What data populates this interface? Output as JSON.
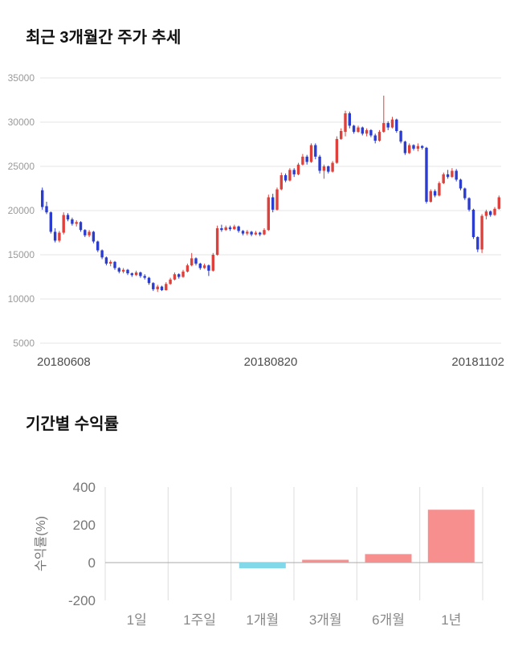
{
  "price_section": {
    "title": "최근 3개월간 주가 추세"
  },
  "returns_section": {
    "title": "기간별 수익률"
  },
  "chart_data": [
    {
      "type": "candlestick",
      "title": "최근 3개월간 주가 추세",
      "ylim": [
        5000,
        35000
      ],
      "yticks": [
        5000,
        10000,
        15000,
        20000,
        25000,
        30000,
        35000
      ],
      "x_labels": [
        "20180608",
        "20180820",
        "20181102"
      ],
      "up_color": "#df403b",
      "down_color": "#2b3cd1",
      "grid_color": "#e4e4e4",
      "grid": "horizontal-only",
      "candles": [
        [
          22300,
          22600,
          20100,
          20400
        ],
        [
          20500,
          21000,
          19600,
          19800
        ],
        [
          19800,
          19900,
          17400,
          17600
        ],
        [
          17600,
          18000,
          16400,
          16600
        ],
        [
          16600,
          17700,
          16400,
          17500
        ],
        [
          17500,
          19800,
          17300,
          19500
        ],
        [
          19500,
          19700,
          18800,
          19000
        ],
        [
          19000,
          19200,
          18300,
          18500
        ],
        [
          18500,
          18900,
          18200,
          18700
        ],
        [
          18700,
          18800,
          17600,
          17800
        ],
        [
          17800,
          17900,
          17000,
          17200
        ],
        [
          17200,
          17800,
          17000,
          17600
        ],
        [
          17600,
          17700,
          16300,
          16500
        ],
        [
          16500,
          16600,
          15300,
          15500
        ],
        [
          15500,
          15600,
          14500,
          14700
        ],
        [
          14700,
          14800,
          13800,
          14000
        ],
        [
          14000,
          14400,
          13700,
          14200
        ],
        [
          14200,
          14300,
          13300,
          13500
        ],
        [
          13500,
          13600,
          12900,
          13100
        ],
        [
          13100,
          13500,
          12900,
          13300
        ],
        [
          13300,
          13400,
          12700,
          12900
        ],
        [
          12900,
          13000,
          12500,
          12700
        ],
        [
          12700,
          13200,
          12600,
          13000
        ],
        [
          13000,
          13100,
          12400,
          12600
        ],
        [
          12600,
          12800,
          12200,
          12400
        ],
        [
          12400,
          12500,
          11600,
          11800
        ],
        [
          11800,
          11900,
          10900,
          11100
        ],
        [
          11100,
          11600,
          10800,
          11400
        ],
        [
          11400,
          11500,
          10900,
          11000
        ],
        [
          11000,
          11900,
          10950,
          11700
        ],
        [
          11700,
          12400,
          11600,
          12200
        ],
        [
          12200,
          13000,
          12100,
          12800
        ],
        [
          12800,
          12900,
          12300,
          12500
        ],
        [
          12500,
          13300,
          12400,
          13100
        ],
        [
          13100,
          14000,
          13000,
          13800
        ],
        [
          13800,
          15200,
          13700,
          14600
        ],
        [
          14600,
          14700,
          13800,
          14000
        ],
        [
          14000,
          14100,
          13300,
          13500
        ],
        [
          13500,
          14000,
          13400,
          13800
        ],
        [
          13800,
          13900,
          12600,
          13200
        ],
        [
          13200,
          15200,
          13100,
          15000
        ],
        [
          15000,
          18300,
          14900,
          18000
        ],
        [
          18000,
          18400,
          17600,
          17800
        ],
        [
          17800,
          18300,
          17700,
          18100
        ],
        [
          18100,
          18300,
          17700,
          17900
        ],
        [
          17900,
          18400,
          17800,
          18200
        ],
        [
          18200,
          18300,
          17500,
          17700
        ],
        [
          17700,
          17800,
          17200,
          17400
        ],
        [
          17400,
          17800,
          17200,
          17600
        ],
        [
          17600,
          17700,
          17100,
          17300
        ],
        [
          17300,
          17700,
          17200,
          17500
        ],
        [
          17500,
          17600,
          17100,
          17300
        ],
        [
          17300,
          18000,
          17200,
          17800
        ],
        [
          17800,
          21800,
          17700,
          21500
        ],
        [
          21500,
          21900,
          19800,
          20100
        ],
        [
          20100,
          22600,
          20000,
          22400
        ],
        [
          22400,
          24300,
          22300,
          24000
        ],
        [
          24000,
          24200,
          23200,
          23400
        ],
        [
          23400,
          24800,
          23300,
          24600
        ],
        [
          24600,
          24800,
          23800,
          24100
        ],
        [
          24100,
          25400,
          24000,
          25200
        ],
        [
          25200,
          26400,
          25100,
          26100
        ],
        [
          26100,
          26300,
          25200,
          25500
        ],
        [
          25500,
          27600,
          25400,
          27400
        ],
        [
          27400,
          27600,
          25800,
          26100
        ],
        [
          26100,
          26300,
          24200,
          24500
        ],
        [
          24500,
          25200,
          23600,
          25000
        ],
        [
          25000,
          25100,
          24200,
          24400
        ],
        [
          24400,
          25600,
          24300,
          25400
        ],
        [
          25400,
          28400,
          25300,
          28100
        ],
        [
          28100,
          29300,
          28000,
          29000
        ],
        [
          28900,
          31300,
          28400,
          31000
        ],
        [
          31000,
          31200,
          29300,
          29600
        ],
        [
          29600,
          29700,
          28700,
          28900
        ],
        [
          28900,
          29600,
          28800,
          29400
        ],
        [
          29400,
          29500,
          28500,
          28700
        ],
        [
          28700,
          29300,
          28400,
          29100
        ],
        [
          29100,
          29200,
          28300,
          28500
        ],
        [
          28500,
          28700,
          27600,
          27900
        ],
        [
          27900,
          29100,
          27800,
          28900
        ],
        [
          28900,
          33000,
          28800,
          29900
        ],
        [
          29900,
          30100,
          29100,
          29400
        ],
        [
          29400,
          30600,
          29300,
          30300
        ],
        [
          30300,
          30400,
          28800,
          29000
        ],
        [
          29000,
          29100,
          27600,
          27800
        ],
        [
          27800,
          27900,
          26300,
          26500
        ],
        [
          26500,
          27600,
          26400,
          27400
        ],
        [
          27400,
          27500,
          26800,
          27000
        ],
        [
          27000,
          27600,
          26700,
          27300
        ],
        [
          27300,
          27400,
          26900,
          27100
        ],
        [
          27100,
          27200,
          20800,
          21000
        ],
        [
          21000,
          22400,
          20900,
          22200
        ],
        [
          22200,
          22400,
          21500,
          21700
        ],
        [
          21700,
          23300,
          21600,
          23100
        ],
        [
          23100,
          24300,
          23000,
          24100
        ],
        [
          24100,
          24600,
          23600,
          23800
        ],
        [
          23800,
          24800,
          23700,
          24500
        ],
        [
          24500,
          24700,
          23300,
          23500
        ],
        [
          23500,
          23600,
          22300,
          22500
        ],
        [
          22500,
          22600,
          21200,
          21400
        ],
        [
          21400,
          21500,
          19900,
          20100
        ],
        [
          20100,
          20200,
          16800,
          17000
        ],
        [
          17000,
          17100,
          15300,
          15600
        ],
        [
          15600,
          19600,
          15200,
          19400
        ],
        [
          19400,
          20100,
          19000,
          19900
        ],
        [
          19900,
          20000,
          19300,
          19500
        ],
        [
          19500,
          20400,
          19400,
          20200
        ],
        [
          20200,
          21700,
          20100,
          21500
        ]
      ]
    },
    {
      "type": "bar",
      "title": "기간별 수익률",
      "categories": [
        "1일",
        "1주일",
        "1개월",
        "3개월",
        "6개월",
        "1년"
      ],
      "values": [
        0,
        0,
        -30,
        15,
        45,
        280
      ],
      "ylabel": "수익률(%)",
      "yticks": [
        400,
        200,
        0,
        -200
      ],
      "ylim": [
        -200,
        400
      ],
      "positive_color": "#f88f8f",
      "negative_color": "#80d8e8",
      "grid_color": "#dcdcdc",
      "zero_line_color": "#aaaaaa",
      "grid": "vertical-only",
      "legend": "none"
    }
  ]
}
